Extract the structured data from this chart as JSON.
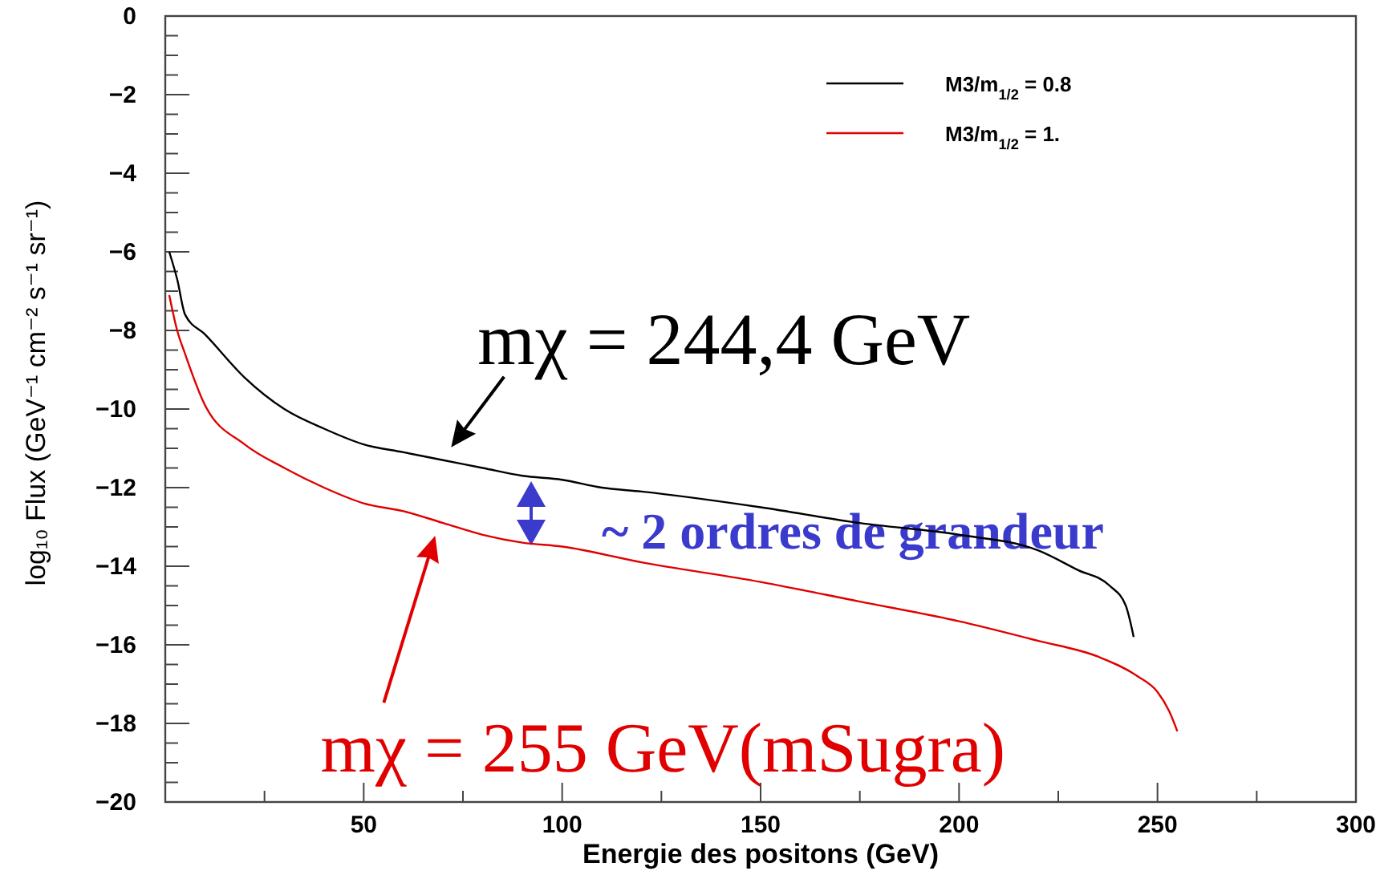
{
  "chart_data": {
    "type": "line",
    "xlabel": "Energie des positons (GeV)",
    "ylabel": "log₁₀ Flux (GeV⁻¹ cm⁻² s⁻¹ sr⁻¹)",
    "xlim": [
      0,
      300
    ],
    "ylim": [
      -20,
      0
    ],
    "xticks": [
      {
        "value": 25,
        "label": null
      },
      50,
      {
        "value": 75,
        "label": null
      },
      100,
      {
        "value": 125,
        "label": null
      },
      150,
      {
        "value": 175,
        "label": null
      },
      200,
      {
        "value": 225,
        "label": null
      },
      250,
      {
        "value": 275,
        "label": null
      },
      300
    ],
    "yticks": [
      -20,
      {
        "value": -19.5,
        "label": null
      },
      {
        "value": -19,
        "label": null
      },
      {
        "value": -18.5,
        "label": null
      },
      -18,
      {
        "value": -17.5,
        "label": null
      },
      {
        "value": -17,
        "label": null
      },
      {
        "value": -16.5,
        "label": null
      },
      -16,
      {
        "value": -15.5,
        "label": null
      },
      {
        "value": -15,
        "label": null
      },
      {
        "value": -14.5,
        "label": null
      },
      -14,
      {
        "value": -13.5,
        "label": null
      },
      {
        "value": -13,
        "label": null
      },
      {
        "value": -12.5,
        "label": null
      },
      -12,
      {
        "value": -11.5,
        "label": null
      },
      {
        "value": -11,
        "label": null
      },
      {
        "value": -10.5,
        "label": null
      },
      -10,
      {
        "value": -9.5,
        "label": null
      },
      {
        "value": -9,
        "label": null
      },
      {
        "value": -8.5,
        "label": null
      },
      -8,
      {
        "value": -7.5,
        "label": null
      },
      {
        "value": -7,
        "label": null
      },
      {
        "value": -6.5,
        "label": null
      },
      -6,
      {
        "value": -5.5,
        "label": null
      },
      {
        "value": -5,
        "label": null
      },
      {
        "value": -4.5,
        "label": null
      },
      -4,
      {
        "value": -3.5,
        "label": null
      },
      {
        "value": -3,
        "label": null
      },
      {
        "value": -2.5,
        "label": null
      },
      -2,
      {
        "value": -1.5,
        "label": null
      },
      {
        "value": -1,
        "label": null
      },
      {
        "value": -0.5,
        "label": null
      },
      0
    ],
    "legend": "top right",
    "grid": false,
    "series": [
      {
        "name": "M3/m$_{1/2}$ = 0.8",
        "color": "#000000",
        "x": [
          1,
          3,
          5,
          10,
          20,
          30,
          40,
          50,
          60,
          70,
          80,
          90,
          100,
          110,
          120,
          150,
          175,
          200,
          220,
          230,
          238,
          242,
          244
        ],
        "values": [
          -6.0,
          -6.7,
          -7.6,
          -8.1,
          -9.2,
          -10.0,
          -10.5,
          -10.9,
          -11.1,
          -11.3,
          -11.5,
          -11.7,
          -11.8,
          -12.0,
          -12.1,
          -12.5,
          -12.9,
          -13.2,
          -13.6,
          -14.1,
          -14.5,
          -15.0,
          -15.8
        ]
      },
      {
        "name": "M3/m$_{1/2}$ = 1.",
        "color": "#e00000",
        "x": [
          1,
          3,
          5,
          10,
          20,
          30,
          40,
          50,
          60,
          70,
          80,
          90,
          100,
          120,
          150,
          175,
          200,
          220,
          235,
          245,
          250,
          253,
          255
        ],
        "values": [
          -7.1,
          -8.0,
          -8.6,
          -9.9,
          -10.9,
          -11.5,
          -12.0,
          -12.4,
          -12.6,
          -12.9,
          -13.2,
          -13.4,
          -13.5,
          -13.9,
          -14.4,
          -14.9,
          -15.4,
          -15.9,
          -16.3,
          -16.8,
          -17.2,
          -17.7,
          -18.2
        ]
      }
    ],
    "annotations": [
      {
        "text": "mχ = 244,4 GeV",
        "x": 70,
        "y": -11.3
      },
      {
        "text": "mχ = 255 GeV(mSugra)",
        "x": 68,
        "y": -12.9
      },
      "~ 2 ordres de grandeur"
    ]
  }
}
